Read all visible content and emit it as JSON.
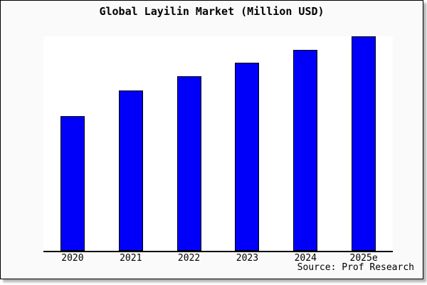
{
  "page": {
    "background_color": "#ffffff",
    "card_background": "#fafafa",
    "plot_background": "#ffffff",
    "border_color": "#000000",
    "shadow_color": "#b3b3b3"
  },
  "chart_data": {
    "type": "bar",
    "title": "Global Layilin Market (Million USD)",
    "categories": [
      "2020",
      "2021",
      "2022",
      "2023",
      "2024",
      "2025e"
    ],
    "values": [
      62.8,
      74.8,
      81.4,
      87.7,
      93.7,
      100
    ],
    "value_scale_note": "no y-axis ticks shown; values are percent of tallest bar (2025e = 100)",
    "ylim": [
      0,
      100
    ],
    "xlabel": "",
    "ylabel": "",
    "grid": false,
    "legend": false,
    "bar_color": "#0000fa",
    "bar_border_color": "#000000",
    "source": "Source: Prof Research"
  }
}
